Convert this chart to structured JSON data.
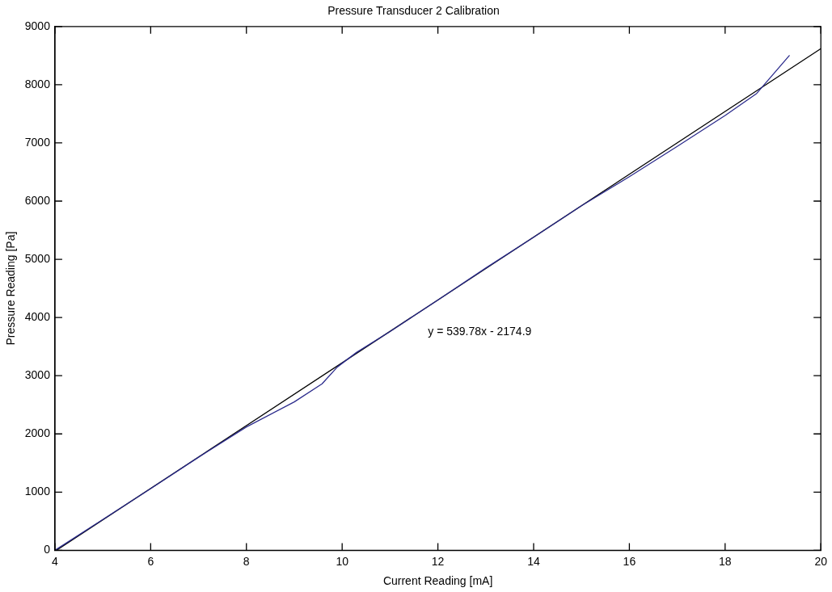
{
  "chart_data": {
    "type": "line",
    "title": "Pressure Transducer 2 Calibration",
    "xlabel": "Current Reading [mA]",
    "ylabel": "Pressure Reading [Pa]",
    "xlim": [
      4,
      20
    ],
    "xticks": [
      4,
      6,
      8,
      10,
      12,
      14,
      16,
      18,
      20
    ],
    "ylim": [
      0,
      9000
    ],
    "yticks": [
      0,
      1000,
      2000,
      3000,
      4000,
      5000,
      6000,
      7000,
      8000,
      9000
    ],
    "grid": false,
    "legend": false,
    "marker": "none",
    "line_style": "solid",
    "series": [
      {
        "color": "#2b2b8c",
        "x": [
          4,
          5,
          6,
          7,
          8,
          9,
          9.58,
          9.9,
          10.3,
          11,
          12,
          13,
          14,
          15,
          16,
          17,
          18,
          18.66,
          19.34
        ],
        "values": [
          0,
          530,
          1060,
          1600,
          2120,
          2550,
          2860,
          3150,
          3400,
          3760,
          4300,
          4850,
          5380,
          5920,
          6420,
          6940,
          7470,
          7850,
          8500
        ]
      },
      {
        "color": "#000000",
        "x": [
          4.03,
          20
        ],
        "values": [
          0,
          8620
        ]
      }
    ],
    "annotations": [
      "y = 539.78x - 2174.9"
    ]
  }
}
